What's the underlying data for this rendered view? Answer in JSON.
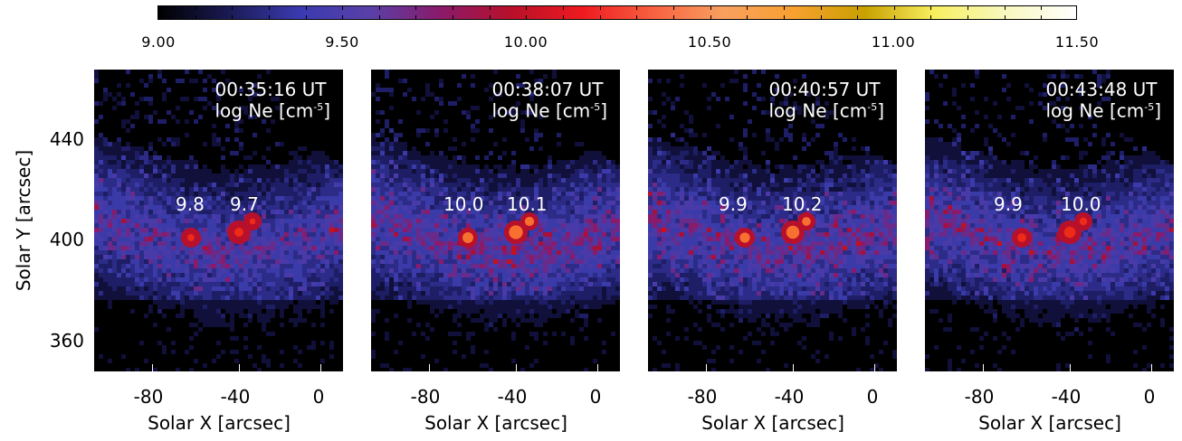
{
  "colorbar": {
    "stops": [
      "#000000",
      "#1a1a55",
      "#3a3ab0",
      "#5a40a8",
      "#8a1a6a",
      "#b8102a",
      "#ee1a20",
      "#f76040",
      "#f8a060",
      "#f8a030",
      "#c8a000",
      "#f8f060",
      "#f8f8c0",
      "#ffffff"
    ],
    "labels": [
      "9.00",
      "9.50",
      "10.00",
      "10.50",
      "11.00",
      "11.50"
    ]
  },
  "panels": [
    {
      "time": "00:35:16 UT",
      "quantity": "log Ne [cm",
      "unit_exp": "-5",
      "value_left": "9.8",
      "value_right": "9.7",
      "intensity": 0.55
    },
    {
      "time": "00:38:07 UT",
      "quantity": "log Ne [cm",
      "unit_exp": "-5",
      "value_left": "10.0",
      "value_right": "10.1",
      "intensity": 0.85
    },
    {
      "time": "00:40:57 UT",
      "quantity": "log Ne [cm",
      "unit_exp": "-5",
      "value_left": "9.9",
      "value_right": "10.2",
      "intensity": 0.8
    },
    {
      "time": "00:43:48 UT",
      "quantity": "log Ne [cm",
      "unit_exp": "-5",
      "value_left": "9.9",
      "value_right": "10.0",
      "intensity": 0.7
    }
  ],
  "x_ticks": [
    "-80",
    "-40",
    "0"
  ],
  "x_label": "Solar X [arcsec]",
  "y_ticks": [
    "440",
    "400",
    "360"
  ],
  "y_label": "Solar Y [arcsec]"
}
